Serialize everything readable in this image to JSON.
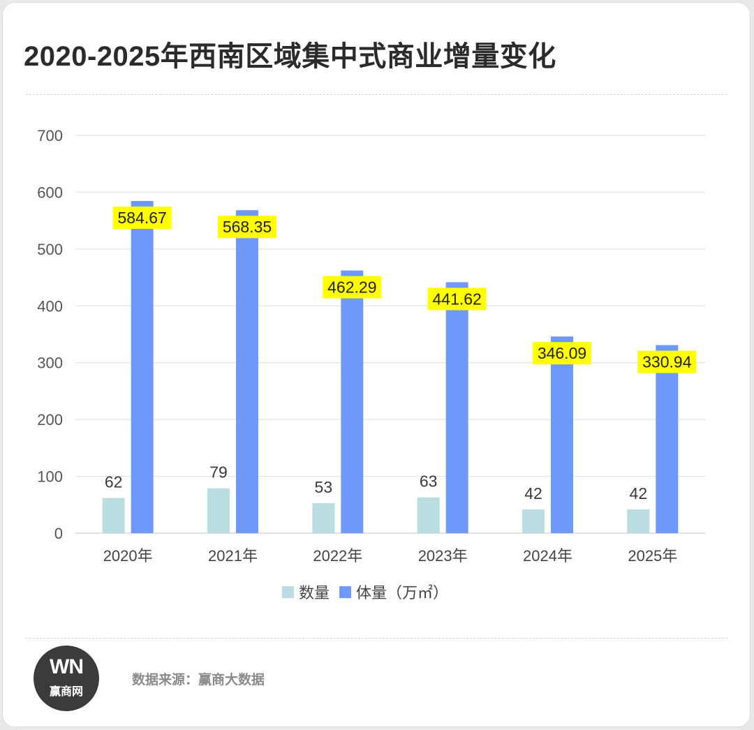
{
  "title": "2020-2025年西南区域集中式商业增量变化",
  "source": "数据来源：赢商大数据",
  "logo": {
    "mark": "WN",
    "name": "赢商网"
  },
  "colors": {
    "count": "#b9dde0",
    "volume": "#6e98fb",
    "label_highlight": "#ffff00",
    "grid": "#e2e2e2",
    "text": "#3a3a3a"
  },
  "chart_data": {
    "type": "bar",
    "categories": [
      "2020年",
      "2021年",
      "2022年",
      "2023年",
      "2024年",
      "2025年"
    ],
    "series": [
      {
        "name": "数量",
        "values": [
          62,
          79,
          53,
          63,
          42,
          42
        ],
        "labels": [
          "62",
          "79",
          "53",
          "63",
          "42",
          "42"
        ]
      },
      {
        "name": "体量（万㎡）",
        "values": [
          584.67,
          568.35,
          462.29,
          441.62,
          346.09,
          330.94
        ],
        "labels": [
          "584.67",
          "568.35",
          "462.29",
          "441.62",
          "346.09",
          "330.94"
        ]
      }
    ],
    "ylim": [
      0,
      700
    ],
    "yticks": [
      "0",
      "100",
      "200",
      "300",
      "400",
      "500",
      "600",
      "700"
    ],
    "grid": true,
    "legend": "bottom"
  }
}
